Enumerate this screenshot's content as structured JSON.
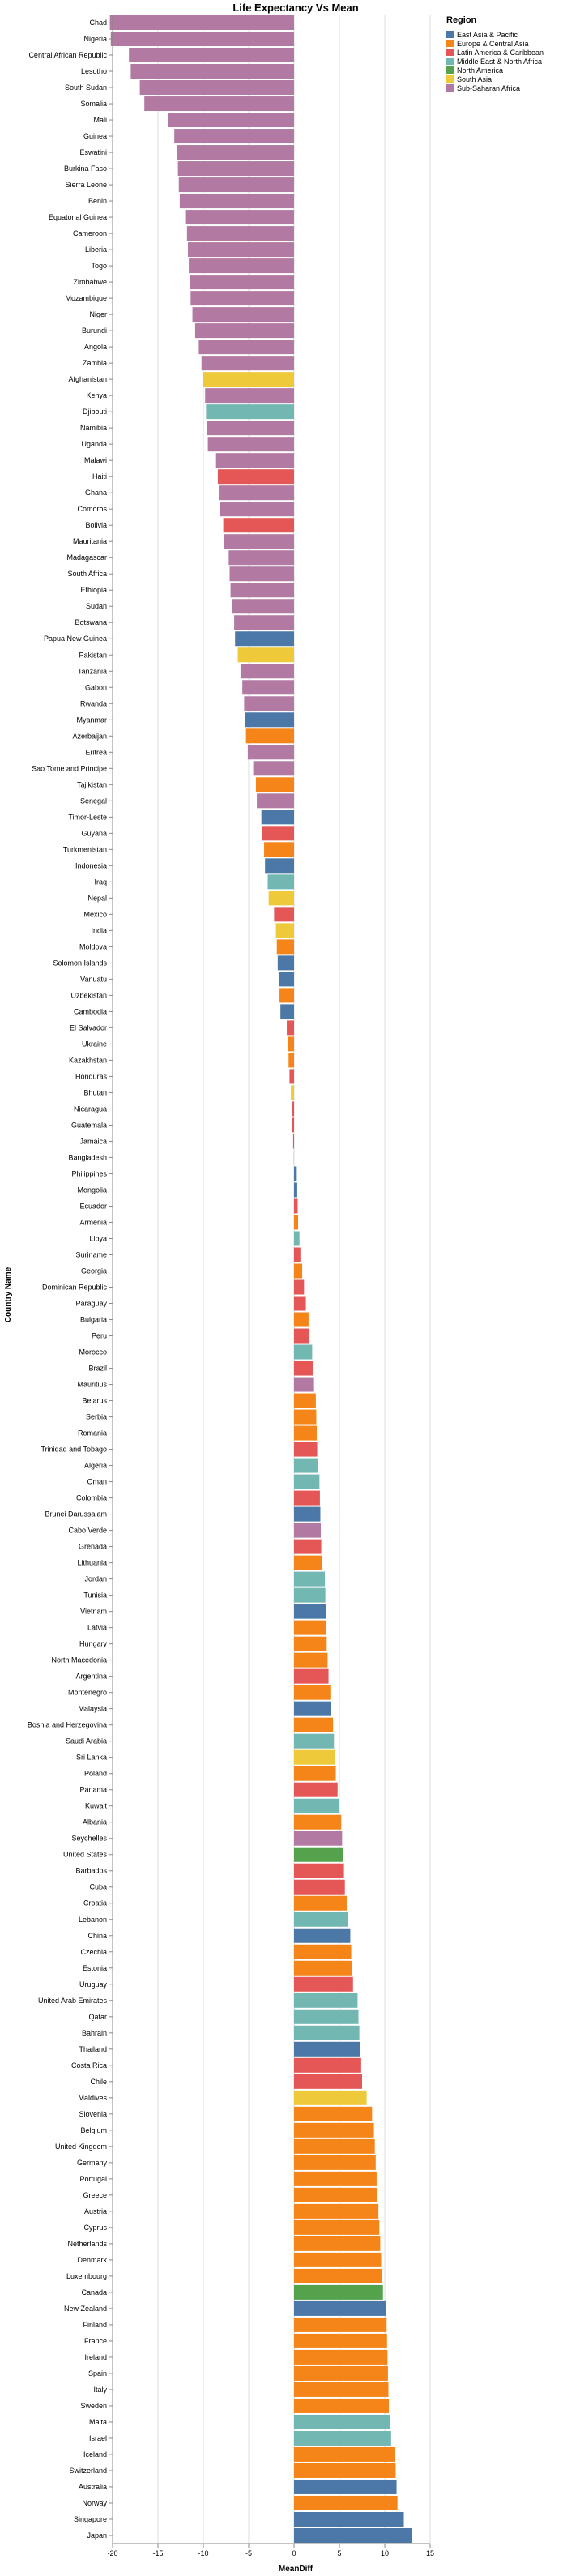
{
  "chart_data": {
    "type": "bar",
    "orientation": "horizontal",
    "title": "Life Expectancy Vs Mean",
    "xlabel": "MeanDiff",
    "ylabel": "Country Name",
    "xlim": [
      -20,
      15
    ],
    "xticks": [
      -20,
      -15,
      -10,
      -5,
      0,
      5,
      10,
      15
    ],
    "grid": true,
    "legend": {
      "title": "Region",
      "placement": "top-right",
      "entries": [
        {
          "name": "East Asia & Pacific",
          "color": "#4c78a8"
        },
        {
          "name": "Europe & Central Asia",
          "color": "#f58518"
        },
        {
          "name": "Latin America & Caribbean",
          "color": "#e45756"
        },
        {
          "name": "Middle East & North Africa",
          "color": "#72b7b2"
        },
        {
          "name": "North America",
          "color": "#54a24b"
        },
        {
          "name": "South Asia",
          "color": "#eeca3b"
        },
        {
          "name": "Sub-Saharan Africa",
          "color": "#b279a2"
        }
      ]
    },
    "bars": [
      {
        "country": "Chad",
        "region": "Sub-Saharan Africa",
        "value": -20.3
      },
      {
        "country": "Nigeria",
        "region": "Sub-Saharan Africa",
        "value": -20.2
      },
      {
        "country": "Central African Republic",
        "region": "Sub-Saharan Africa",
        "value": -18.2
      },
      {
        "country": "Lesotho",
        "region": "Sub-Saharan Africa",
        "value": -18.0
      },
      {
        "country": "South Sudan",
        "region": "Sub-Saharan Africa",
        "value": -17.0
      },
      {
        "country": "Somalia",
        "region": "Sub-Saharan Africa",
        "value": -16.5
      },
      {
        "country": "Mali",
        "region": "Sub-Saharan Africa",
        "value": -13.9
      },
      {
        "country": "Guinea",
        "region": "Sub-Saharan Africa",
        "value": -13.2
      },
      {
        "country": "Eswatini",
        "region": "Sub-Saharan Africa",
        "value": -12.9
      },
      {
        "country": "Burkina Faso",
        "region": "Sub-Saharan Africa",
        "value": -12.8
      },
      {
        "country": "Sierra Leone",
        "region": "Sub-Saharan Africa",
        "value": -12.7
      },
      {
        "country": "Benin",
        "region": "Sub-Saharan Africa",
        "value": -12.6
      },
      {
        "country": "Equatorial Guinea",
        "region": "Sub-Saharan Africa",
        "value": -12.0
      },
      {
        "country": "Cameroon",
        "region": "Sub-Saharan Africa",
        "value": -11.8
      },
      {
        "country": "Liberia",
        "region": "Sub-Saharan Africa",
        "value": -11.7
      },
      {
        "country": "Togo",
        "region": "Sub-Saharan Africa",
        "value": -11.6
      },
      {
        "country": "Zimbabwe",
        "region": "Sub-Saharan Africa",
        "value": -11.5
      },
      {
        "country": "Mozambique",
        "region": "Sub-Saharan Africa",
        "value": -11.4
      },
      {
        "country": "Niger",
        "region": "Sub-Saharan Africa",
        "value": -11.2
      },
      {
        "country": "Burundi",
        "region": "Sub-Saharan Africa",
        "value": -10.9
      },
      {
        "country": "Angola",
        "region": "Sub-Saharan Africa",
        "value": -10.5
      },
      {
        "country": "Zambia",
        "region": "Sub-Saharan Africa",
        "value": -10.2
      },
      {
        "country": "Afghanistan",
        "region": "South Asia",
        "value": -10.0
      },
      {
        "country": "Kenya",
        "region": "Sub-Saharan Africa",
        "value": -9.8
      },
      {
        "country": "Djibouti",
        "region": "Middle East & North Africa",
        "value": -9.7
      },
      {
        "country": "Namibia",
        "region": "Sub-Saharan Africa",
        "value": -9.6
      },
      {
        "country": "Uganda",
        "region": "Sub-Saharan Africa",
        "value": -9.5
      },
      {
        "country": "Malawi",
        "region": "Sub-Saharan Africa",
        "value": -8.6
      },
      {
        "country": "Haiti",
        "region": "Latin America & Caribbean",
        "value": -8.4
      },
      {
        "country": "Ghana",
        "region": "Sub-Saharan Africa",
        "value": -8.3
      },
      {
        "country": "Comoros",
        "region": "Sub-Saharan Africa",
        "value": -8.2
      },
      {
        "country": "Bolivia",
        "region": "Latin America & Caribbean",
        "value": -7.8
      },
      {
        "country": "Mauritania",
        "region": "Sub-Saharan Africa",
        "value": -7.7
      },
      {
        "country": "Madagascar",
        "region": "Sub-Saharan Africa",
        "value": -7.2
      },
      {
        "country": "South Africa",
        "region": "Sub-Saharan Africa",
        "value": -7.1
      },
      {
        "country": "Ethiopia",
        "region": "Sub-Saharan Africa",
        "value": -7.0
      },
      {
        "country": "Sudan",
        "region": "Sub-Saharan Africa",
        "value": -6.8
      },
      {
        "country": "Botswana",
        "region": "Sub-Saharan Africa",
        "value": -6.6
      },
      {
        "country": "Papua New Guinea",
        "region": "East Asia & Pacific",
        "value": -6.5
      },
      {
        "country": "Pakistan",
        "region": "South Asia",
        "value": -6.2
      },
      {
        "country": "Tanzania",
        "region": "Sub-Saharan Africa",
        "value": -5.9
      },
      {
        "country": "Gabon",
        "region": "Sub-Saharan Africa",
        "value": -5.7
      },
      {
        "country": "Rwanda",
        "region": "Sub-Saharan Africa",
        "value": -5.5
      },
      {
        "country": "Myanmar",
        "region": "East Asia & Pacific",
        "value": -5.4
      },
      {
        "country": "Azerbaijan",
        "region": "Europe & Central Asia",
        "value": -5.3
      },
      {
        "country": "Eritrea",
        "region": "Sub-Saharan Africa",
        "value": -5.1
      },
      {
        "country": "Sao Tome and Principe",
        "region": "Sub-Saharan Africa",
        "value": -4.5
      },
      {
        "country": "Tajikistan",
        "region": "Europe & Central Asia",
        "value": -4.2
      },
      {
        "country": "Senegal",
        "region": "Sub-Saharan Africa",
        "value": -4.1
      },
      {
        "country": "Timor-Leste",
        "region": "East Asia & Pacific",
        "value": -3.6
      },
      {
        "country": "Guyana",
        "region": "Latin America & Caribbean",
        "value": -3.5
      },
      {
        "country": "Turkmenistan",
        "region": "Europe & Central Asia",
        "value": -3.3
      },
      {
        "country": "Indonesia",
        "region": "East Asia & Pacific",
        "value": -3.2
      },
      {
        "country": "Iraq",
        "region": "Middle East & North Africa",
        "value": -2.9
      },
      {
        "country": "Nepal",
        "region": "South Asia",
        "value": -2.8
      },
      {
        "country": "Mexico",
        "region": "Latin America & Caribbean",
        "value": -2.2
      },
      {
        "country": "India",
        "region": "South Asia",
        "value": -2.0
      },
      {
        "country": "Moldova",
        "region": "Europe & Central Asia",
        "value": -1.9
      },
      {
        "country": "Solomon Islands",
        "region": "East Asia & Pacific",
        "value": -1.8
      },
      {
        "country": "Vanuatu",
        "region": "East Asia & Pacific",
        "value": -1.7
      },
      {
        "country": "Uzbekistan",
        "region": "Europe & Central Asia",
        "value": -1.6
      },
      {
        "country": "Cambodia",
        "region": "East Asia & Pacific",
        "value": -1.5
      },
      {
        "country": "El Salvador",
        "region": "Latin America & Caribbean",
        "value": -0.8
      },
      {
        "country": "Ukraine",
        "region": "Europe & Central Asia",
        "value": -0.7
      },
      {
        "country": "Kazakhstan",
        "region": "Europe & Central Asia",
        "value": -0.6
      },
      {
        "country": "Honduras",
        "region": "Latin America & Caribbean",
        "value": -0.5
      },
      {
        "country": "Bhutan",
        "region": "South Asia",
        "value": -0.35
      },
      {
        "country": "Nicaragua",
        "region": "Latin America & Caribbean",
        "value": -0.25
      },
      {
        "country": "Guatemala",
        "region": "Latin America & Caribbean",
        "value": -0.2
      },
      {
        "country": "Jamaica",
        "region": "Latin America & Caribbean",
        "value": -0.1
      },
      {
        "country": "Bangladesh",
        "region": "South Asia",
        "value": -0.05
      },
      {
        "country": "Philippines",
        "region": "East Asia & Pacific",
        "value": 0.3
      },
      {
        "country": "Mongolia",
        "region": "East Asia & Pacific",
        "value": 0.35
      },
      {
        "country": "Ecuador",
        "region": "Latin America & Caribbean",
        "value": 0.4
      },
      {
        "country": "Armenia",
        "region": "Europe & Central Asia",
        "value": 0.45
      },
      {
        "country": "Libya",
        "region": "Middle East & North Africa",
        "value": 0.6
      },
      {
        "country": "Suriname",
        "region": "Latin America & Caribbean",
        "value": 0.7
      },
      {
        "country": "Georgia",
        "region": "Europe & Central Asia",
        "value": 0.9
      },
      {
        "country": "Dominican Republic",
        "region": "Latin America & Caribbean",
        "value": 1.1
      },
      {
        "country": "Paraguay",
        "region": "Latin America & Caribbean",
        "value": 1.3
      },
      {
        "country": "Bulgaria",
        "region": "Europe & Central Asia",
        "value": 1.6
      },
      {
        "country": "Peru",
        "region": "Latin America & Caribbean",
        "value": 1.7
      },
      {
        "country": "Morocco",
        "region": "Middle East & North Africa",
        "value": 2.0
      },
      {
        "country": "Brazil",
        "region": "Latin America & Caribbean",
        "value": 2.1
      },
      {
        "country": "Mauritius",
        "region": "Sub-Saharan Africa",
        "value": 2.2
      },
      {
        "country": "Belarus",
        "region": "Europe & Central Asia",
        "value": 2.4
      },
      {
        "country": "Serbia",
        "region": "Europe & Central Asia",
        "value": 2.45
      },
      {
        "country": "Romania",
        "region": "Europe & Central Asia",
        "value": 2.5
      },
      {
        "country": "Trinidad and Tobago",
        "region": "Latin America & Caribbean",
        "value": 2.55
      },
      {
        "country": "Algeria",
        "region": "Middle East & North Africa",
        "value": 2.6
      },
      {
        "country": "Oman",
        "region": "Middle East & North Africa",
        "value": 2.8
      },
      {
        "country": "Colombia",
        "region": "Latin America & Caribbean",
        "value": 2.85
      },
      {
        "country": "Brunei Darussalam",
        "region": "East Asia & Pacific",
        "value": 2.9
      },
      {
        "country": "Cabo Verde",
        "region": "Sub-Saharan Africa",
        "value": 2.95
      },
      {
        "country": "Grenada",
        "region": "Latin America & Caribbean",
        "value": 3.0
      },
      {
        "country": "Lithuania",
        "region": "Europe & Central Asia",
        "value": 3.1
      },
      {
        "country": "Jordan",
        "region": "Middle East & North Africa",
        "value": 3.4
      },
      {
        "country": "Tunisia",
        "region": "Middle East & North Africa",
        "value": 3.45
      },
      {
        "country": "Vietnam",
        "region": "East Asia & Pacific",
        "value": 3.5
      },
      {
        "country": "Latvia",
        "region": "Europe & Central Asia",
        "value": 3.55
      },
      {
        "country": "Hungary",
        "region": "Europe & Central Asia",
        "value": 3.6
      },
      {
        "country": "North Macedonia",
        "region": "Europe & Central Asia",
        "value": 3.7
      },
      {
        "country": "Argentina",
        "region": "Latin America & Caribbean",
        "value": 3.8
      },
      {
        "country": "Montenegro",
        "region": "Europe & Central Asia",
        "value": 4.0
      },
      {
        "country": "Malaysia",
        "region": "East Asia & Pacific",
        "value": 4.1
      },
      {
        "country": "Bosnia and Herzegovina",
        "region": "Europe & Central Asia",
        "value": 4.3
      },
      {
        "country": "Saudi Arabia",
        "region": "Middle East & North Africa",
        "value": 4.4
      },
      {
        "country": "Sri Lanka",
        "region": "South Asia",
        "value": 4.5
      },
      {
        "country": "Poland",
        "region": "Europe & Central Asia",
        "value": 4.6
      },
      {
        "country": "Panama",
        "region": "Latin America & Caribbean",
        "value": 4.8
      },
      {
        "country": "Kuwait",
        "region": "Middle East & North Africa",
        "value": 5.0
      },
      {
        "country": "Albania",
        "region": "Europe & Central Asia",
        "value": 5.2
      },
      {
        "country": "Seychelles",
        "region": "Sub-Saharan Africa",
        "value": 5.3
      },
      {
        "country": "United States",
        "region": "North America",
        "value": 5.4
      },
      {
        "country": "Barbados",
        "region": "Latin America & Caribbean",
        "value": 5.5
      },
      {
        "country": "Cuba",
        "region": "Latin America & Caribbean",
        "value": 5.6
      },
      {
        "country": "Croatia",
        "region": "Europe & Central Asia",
        "value": 5.8
      },
      {
        "country": "Lebanon",
        "region": "Middle East & North Africa",
        "value": 5.9
      },
      {
        "country": "China",
        "region": "East Asia & Pacific",
        "value": 6.2
      },
      {
        "country": "Czechia",
        "region": "Europe & Central Asia",
        "value": 6.3
      },
      {
        "country": "Estonia",
        "region": "Europe & Central Asia",
        "value": 6.4
      },
      {
        "country": "Uruguay",
        "region": "Latin America & Caribbean",
        "value": 6.5
      },
      {
        "country": "United Arab Emirates",
        "region": "Middle East & North Africa",
        "value": 7.0
      },
      {
        "country": "Qatar",
        "region": "Middle East & North Africa",
        "value": 7.1
      },
      {
        "country": "Bahrain",
        "region": "Middle East & North Africa",
        "value": 7.2
      },
      {
        "country": "Thailand",
        "region": "East Asia & Pacific",
        "value": 7.3
      },
      {
        "country": "Costa Rica",
        "region": "Latin America & Caribbean",
        "value": 7.4
      },
      {
        "country": "Chile",
        "region": "Latin America & Caribbean",
        "value": 7.5
      },
      {
        "country": "Maldives",
        "region": "South Asia",
        "value": 8.0
      },
      {
        "country": "Slovenia",
        "region": "Europe & Central Asia",
        "value": 8.6
      },
      {
        "country": "Belgium",
        "region": "Europe & Central Asia",
        "value": 8.8
      },
      {
        "country": "United Kingdom",
        "region": "Europe & Central Asia",
        "value": 8.9
      },
      {
        "country": "Germany",
        "region": "Europe & Central Asia",
        "value": 9.0
      },
      {
        "country": "Portugal",
        "region": "Europe & Central Asia",
        "value": 9.1
      },
      {
        "country": "Greece",
        "region": "Europe & Central Asia",
        "value": 9.2
      },
      {
        "country": "Austria",
        "region": "Europe & Central Asia",
        "value": 9.3
      },
      {
        "country": "Cyprus",
        "region": "Europe & Central Asia",
        "value": 9.4
      },
      {
        "country": "Netherlands",
        "region": "Europe & Central Asia",
        "value": 9.5
      },
      {
        "country": "Denmark",
        "region": "Europe & Central Asia",
        "value": 9.6
      },
      {
        "country": "Luxembourg",
        "region": "Europe & Central Asia",
        "value": 9.7
      },
      {
        "country": "Canada",
        "region": "North America",
        "value": 9.8
      },
      {
        "country": "New Zealand",
        "region": "East Asia & Pacific",
        "value": 10.1
      },
      {
        "country": "Finland",
        "region": "Europe & Central Asia",
        "value": 10.2
      },
      {
        "country": "France",
        "region": "Europe & Central Asia",
        "value": 10.25
      },
      {
        "country": "Ireland",
        "region": "Europe & Central Asia",
        "value": 10.3
      },
      {
        "country": "Spain",
        "region": "Europe & Central Asia",
        "value": 10.35
      },
      {
        "country": "Italy",
        "region": "Europe & Central Asia",
        "value": 10.4
      },
      {
        "country": "Sweden",
        "region": "Europe & Central Asia",
        "value": 10.45
      },
      {
        "country": "Malta",
        "region": "Middle East & North Africa",
        "value": 10.6
      },
      {
        "country": "Israel",
        "region": "Middle East & North Africa",
        "value": 10.7
      },
      {
        "country": "Iceland",
        "region": "Europe & Central Asia",
        "value": 11.1
      },
      {
        "country": "Switzerland",
        "region": "Europe & Central Asia",
        "value": 11.2
      },
      {
        "country": "Australia",
        "region": "East Asia & Pacific",
        "value": 11.3
      },
      {
        "country": "Norway",
        "region": "Europe & Central Asia",
        "value": 11.4
      },
      {
        "country": "Singapore",
        "region": "East Asia & Pacific",
        "value": 12.1
      },
      {
        "country": "Japan",
        "region": "East Asia & Pacific",
        "value": 13.0
      }
    ]
  }
}
